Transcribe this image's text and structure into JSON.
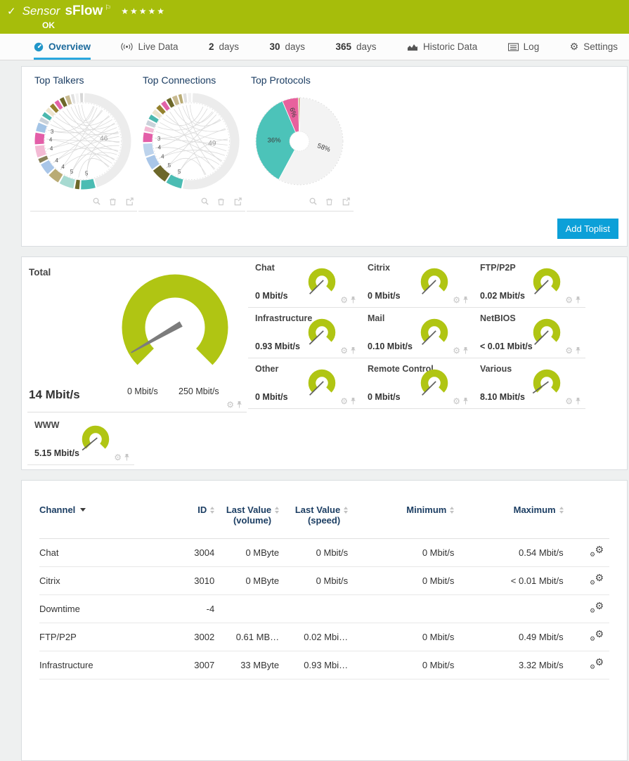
{
  "header": {
    "check": "✓",
    "sensor_type": "Sensor",
    "sensor_name": "sFlow",
    "flag": "⚐",
    "stars": "★★★★★",
    "status": "OK",
    "bg_color": "#a6bd0b"
  },
  "tabs": {
    "overview": "Overview",
    "live_data": "Live Data",
    "d2_num": "2",
    "d2_unit": "days",
    "d30_num": "30",
    "d30_unit": "days",
    "d365_num": "365",
    "d365_unit": "days",
    "historic": "Historic Data",
    "log": "Log",
    "settings": "Settings"
  },
  "icons": {
    "gear": "⚙"
  },
  "toplists": {
    "add_button": "Add Toplist",
    "panels": [
      {
        "title": "Top Talkers",
        "type": "chord",
        "segments": [
          {
            "value": 46,
            "color": "#ececec",
            "label": "46",
            "big": true
          },
          {
            "value": 5,
            "color": "#4bbcb3",
            "label": "5"
          },
          {
            "value": 1.5,
            "color": "#6d682a"
          },
          {
            "value": 5,
            "color": "#a7dad1",
            "label": "5"
          },
          {
            "value": 4,
            "color": "#b9ab74",
            "label": "4"
          },
          {
            "value": 4,
            "color": "#a9c6e8",
            "label": "4"
          },
          {
            "value": 1.5,
            "color": "#89825a"
          },
          {
            "value": 4,
            "color": "#f3bad4",
            "label": "4"
          },
          {
            "value": 4,
            "color": "#e35ea8",
            "label": "4"
          },
          {
            "value": 3,
            "color": "#a3c4e6",
            "label": "3"
          },
          {
            "value": 1.5,
            "color": "#c9d2da"
          },
          {
            "value": 1.5,
            "color": "#4bb8ae"
          },
          {
            "value": 1.5,
            "color": "#ece4cd"
          },
          {
            "value": 1.5,
            "color": "#94812e"
          },
          {
            "value": 1.5,
            "color": "#e263a8"
          },
          {
            "value": 1.5,
            "color": "#6d682a"
          },
          {
            "value": 1.5,
            "color": "#c8ba90"
          },
          {
            "value": 1,
            "color": "#e0e0e0"
          },
          {
            "value": 1,
            "color": "#f2f2f2"
          },
          {
            "value": 1,
            "color": "#d6d6d6"
          }
        ]
      },
      {
        "title": "Top Connections",
        "type": "chord",
        "segments": [
          {
            "value": 49,
            "color": "#ececec",
            "label": "49",
            "big": true
          },
          {
            "value": 5,
            "color": "#4bbcb3",
            "label": "5"
          },
          {
            "value": 5,
            "color": "#6d682a",
            "label": "5"
          },
          {
            "value": 4,
            "color": "#a9c6e8",
            "label": "4"
          },
          {
            "value": 4,
            "color": "#bdd3ec",
            "label": "4"
          },
          {
            "value": 3,
            "color": "#e35ea8",
            "label": "3"
          },
          {
            "value": 1.5,
            "color": "#f3bad4"
          },
          {
            "value": 1.5,
            "color": "#c9d2da"
          },
          {
            "value": 1.5,
            "color": "#4bb8ae"
          },
          {
            "value": 1.5,
            "color": "#ece4cd"
          },
          {
            "value": 1.5,
            "color": "#94812e"
          },
          {
            "value": 1.5,
            "color": "#e263a8"
          },
          {
            "value": 1.5,
            "color": "#6d682a"
          },
          {
            "value": 1.5,
            "color": "#c8ba90"
          },
          {
            "value": 1,
            "color": "#b9ab74"
          },
          {
            "value": 1,
            "color": "#e0e0e0"
          },
          {
            "value": 1,
            "color": "#f2f2f2"
          }
        ]
      },
      {
        "title": "Top Protocols",
        "type": "pie",
        "segments": [
          {
            "value": 58,
            "color": "#f3f3f3",
            "label": "58%",
            "label_rot": 20
          },
          {
            "value": 36,
            "color": "#4cc3b9",
            "label": "36%",
            "label_rot": 0
          },
          {
            "value": 6,
            "color": "#e8619d",
            "label": "6%",
            "label_rot": 72
          },
          {
            "value": 0.7,
            "color": "#c9b37e"
          }
        ]
      }
    ]
  },
  "gauges": {
    "accent": "#b0c513",
    "needle_color": "#7c7c7c",
    "total": {
      "title": "Total",
      "value": 14,
      "max": 250,
      "value_label": "14 Mbit/s",
      "scale_min": "0 Mbit/s",
      "scale_max": "250 Mbit/s"
    },
    "channels": [
      {
        "title": "Chat",
        "value": 0,
        "max": 250,
        "value_label": "0 Mbit/s"
      },
      {
        "title": "Citrix",
        "value": 0,
        "max": 250,
        "value_label": "0 Mbit/s"
      },
      {
        "title": "FTP/P2P",
        "value": 0.02,
        "max": 250,
        "value_label": "0.02 Mbit/s"
      },
      {
        "title": "Infrastructure",
        "value": 0.93,
        "max": 250,
        "value_label": "0.93 Mbit/s"
      },
      {
        "title": "Mail",
        "value": 0.1,
        "max": 250,
        "value_label": "0.10 Mbit/s"
      },
      {
        "title": "NetBIOS",
        "value": 0.01,
        "max": 250,
        "value_label": "< 0.01 Mbit/s"
      },
      {
        "title": "Other",
        "value": 0,
        "max": 250,
        "value_label": "0 Mbit/s"
      },
      {
        "title": "Remote Control",
        "value": 0,
        "max": 250,
        "value_label": "0 Mbit/s"
      },
      {
        "title": "Various",
        "value": 8.1,
        "max": 250,
        "value_label": "8.10 Mbit/s"
      },
      {
        "title": "WWW",
        "value": 5.15,
        "max": 250,
        "value_label": "5.15 Mbit/s"
      }
    ]
  },
  "table": {
    "columns": [
      {
        "label": "Channel"
      },
      {
        "label": "ID"
      },
      {
        "label": "Last Value",
        "sub": "(volume)"
      },
      {
        "label": "Last Value",
        "sub": "(speed)"
      },
      {
        "label": "Minimum"
      },
      {
        "label": "Maximum"
      }
    ],
    "rows": [
      {
        "channel": "Chat",
        "id": "3004",
        "last_volume": "0 MByte",
        "last_speed": "0 Mbit/s",
        "minimum": "0 Mbit/s",
        "maximum": "0.54 Mbit/s"
      },
      {
        "channel": "Citrix",
        "id": "3010",
        "last_volume": "0 MByte",
        "last_speed": "0 Mbit/s",
        "minimum": "0 Mbit/s",
        "maximum": "< 0.01 Mbit/s"
      },
      {
        "channel": "Downtime",
        "id": "-4",
        "last_volume": "",
        "last_speed": "",
        "minimum": "",
        "maximum": ""
      },
      {
        "channel": "FTP/P2P",
        "id": "3002",
        "last_volume": "0.61 MB…",
        "last_speed": "0.02 Mbi…",
        "minimum": "0 Mbit/s",
        "maximum": "0.49 Mbit/s"
      },
      {
        "channel": "Infrastructure",
        "id": "3007",
        "last_volume": "33 MByte",
        "last_speed": "0.93 Mbi…",
        "minimum": "0 Mbit/s",
        "maximum": "3.32 Mbit/s"
      }
    ]
  }
}
